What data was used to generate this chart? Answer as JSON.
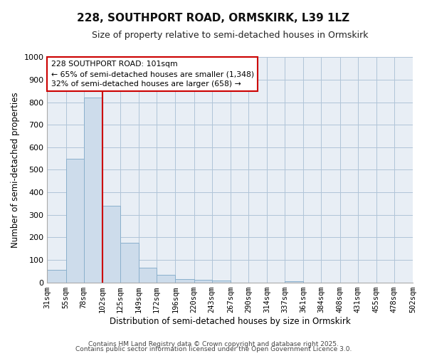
{
  "title": "228, SOUTHPORT ROAD, ORMSKIRK, L39 1LZ",
  "subtitle": "Size of property relative to semi-detached houses in Ormskirk",
  "xlabel": "Distribution of semi-detached houses by size in Ormskirk",
  "ylabel": "Number of semi-detached properties",
  "bin_edges": [
    31,
    55,
    78,
    102,
    125,
    149,
    172,
    196,
    220,
    243,
    267,
    290,
    314,
    337,
    361,
    384,
    408,
    431,
    455,
    478,
    502
  ],
  "bar_heights": [
    55,
    550,
    820,
    340,
    175,
    65,
    32,
    15,
    12,
    8,
    0,
    0,
    0,
    5,
    0,
    0,
    0,
    0,
    0,
    0
  ],
  "bar_color": "#cddceb",
  "bar_edge_color": "#8ab0cc",
  "property_line_x": 102,
  "property_line_color": "#cc0000",
  "annotation_title": "228 SOUTHPORT ROAD: 101sqm",
  "annotation_line1": "← 65% of semi-detached houses are smaller (1,348)",
  "annotation_line2": "32% of semi-detached houses are larger (658) →",
  "annotation_box_color": "#cc0000",
  "ylim": [
    0,
    1000
  ],
  "yticks": [
    0,
    100,
    200,
    300,
    400,
    500,
    600,
    700,
    800,
    900,
    1000
  ],
  "footer_line1": "Contains HM Land Registry data © Crown copyright and database right 2025.",
  "footer_line2": "Contains public sector information licensed under the Open Government Licence 3.0.",
  "bg_color": "#ffffff",
  "plot_bg_color": "#e8eef5"
}
